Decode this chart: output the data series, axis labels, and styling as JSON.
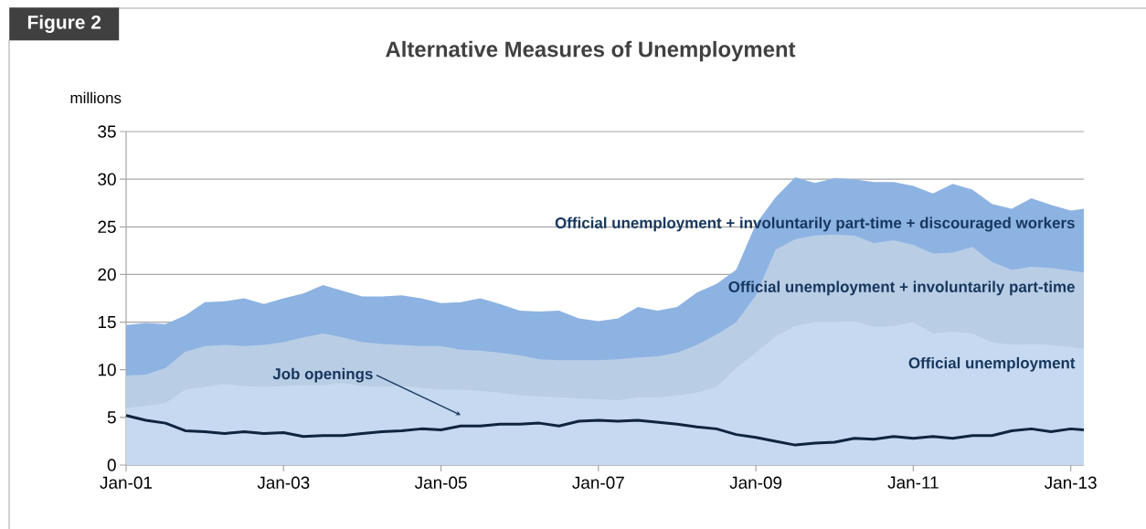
{
  "chart_data": {
    "type": "area",
    "title": "Alternative Measures of Unemployment",
    "ylabel": "millions",
    "annotations": [
      "Figure 2"
    ],
    "x": [
      "2001-01",
      "2001-04",
      "2001-07",
      "2001-10",
      "2002-01",
      "2002-04",
      "2002-07",
      "2002-10",
      "2003-01",
      "2003-04",
      "2003-07",
      "2003-10",
      "2004-01",
      "2004-04",
      "2004-07",
      "2004-10",
      "2005-01",
      "2005-04",
      "2005-07",
      "2005-10",
      "2006-01",
      "2006-04",
      "2006-07",
      "2006-10",
      "2007-01",
      "2007-04",
      "2007-07",
      "2007-10",
      "2008-01",
      "2008-04",
      "2008-07",
      "2008-10",
      "2009-01",
      "2009-04",
      "2009-07",
      "2009-10",
      "2010-01",
      "2010-04",
      "2010-07",
      "2010-10",
      "2011-01",
      "2011-04",
      "2011-07",
      "2011-10",
      "2012-01",
      "2012-04",
      "2012-07",
      "2012-10",
      "2013-01",
      "2013-03"
    ],
    "series": [
      {
        "name": "Official unemployment + involuntarily part-time + discouraged workers",
        "color": "#8db3e2",
        "values": [
          14.7,
          14.9,
          14.8,
          15.7,
          17.1,
          17.2,
          17.5,
          16.9,
          17.5,
          18.0,
          18.9,
          18.3,
          17.7,
          17.7,
          17.8,
          17.5,
          17.0,
          17.1,
          17.5,
          16.9,
          16.2,
          16.1,
          16.2,
          15.4,
          15.1,
          15.4,
          16.6,
          16.2,
          16.6,
          18.1,
          19.0,
          20.5,
          25.3,
          28.1,
          30.2,
          29.6,
          30.1,
          30.0,
          29.7,
          29.7,
          29.3,
          28.5,
          29.5,
          28.9,
          27.4,
          26.9,
          28.0,
          27.3,
          26.7,
          26.9
        ]
      },
      {
        "name": "Official unemployment + involuntarily part-time",
        "color": "#b9cde5",
        "values": [
          9.4,
          9.5,
          10.2,
          11.9,
          12.5,
          12.6,
          12.5,
          12.6,
          12.9,
          13.4,
          13.8,
          13.4,
          12.9,
          12.7,
          12.6,
          12.5,
          12.5,
          12.1,
          12.0,
          11.8,
          11.5,
          11.1,
          11.0,
          11.0,
          11.0,
          11.1,
          11.3,
          11.4,
          11.8,
          12.6,
          13.7,
          15.0,
          17.8,
          22.6,
          23.7,
          24.1,
          24.2,
          24.1,
          23.3,
          23.6,
          23.1,
          22.2,
          22.3,
          22.9,
          21.3,
          20.5,
          20.8,
          20.7,
          20.4,
          20.2
        ]
      },
      {
        "name": "Official unemployment",
        "color": "#c6d9f1",
        "values": [
          6.0,
          6.2,
          6.5,
          7.9,
          8.2,
          8.5,
          8.3,
          8.2,
          8.3,
          8.4,
          8.4,
          8.6,
          8.3,
          8.2,
          8.3,
          8.1,
          7.9,
          7.9,
          7.8,
          7.6,
          7.3,
          7.2,
          7.1,
          7.0,
          6.9,
          6.8,
          7.1,
          7.1,
          7.3,
          7.6,
          8.2,
          10.2,
          11.8,
          13.5,
          14.6,
          15.0,
          15.0,
          15.1,
          14.5,
          14.6,
          15.0,
          13.8,
          14.0,
          13.8,
          12.9,
          12.6,
          12.7,
          12.6,
          12.4,
          12.2
        ]
      },
      {
        "name": "Job openings",
        "type": "line",
        "color": "#0f243e",
        "values": [
          5.2,
          4.7,
          4.4,
          3.6,
          3.5,
          3.3,
          3.5,
          3.3,
          3.4,
          3.0,
          3.1,
          3.1,
          3.3,
          3.5,
          3.6,
          3.8,
          3.7,
          4.1,
          4.1,
          4.3,
          4.3,
          4.4,
          4.1,
          4.6,
          4.7,
          4.6,
          4.7,
          4.5,
          4.3,
          4.0,
          3.8,
          3.2,
          2.9,
          2.5,
          2.1,
          2.3,
          2.4,
          2.8,
          2.7,
          3.0,
          2.8,
          3.0,
          2.8,
          3.1,
          3.1,
          3.6,
          3.8,
          3.5,
          3.8,
          3.7
        ]
      }
    ],
    "xlim": [
      "2001-01",
      "2013-03"
    ],
    "xticks": [
      {
        "value": "2001-01",
        "label": "Jan-01"
      },
      {
        "value": "2003-01",
        "label": "Jan-03"
      },
      {
        "value": "2005-01",
        "label": "Jan-05"
      },
      {
        "value": "2007-01",
        "label": "Jan-07"
      },
      {
        "value": "2009-01",
        "label": "Jan-09"
      },
      {
        "value": "2011-01",
        "label": "Jan-11"
      },
      {
        "value": "2013-01",
        "label": "Jan-13"
      }
    ],
    "ylim": [
      0,
      35
    ],
    "yticks": [
      0,
      5,
      10,
      15,
      20,
      25,
      30,
      35
    ],
    "grid": "y"
  }
}
